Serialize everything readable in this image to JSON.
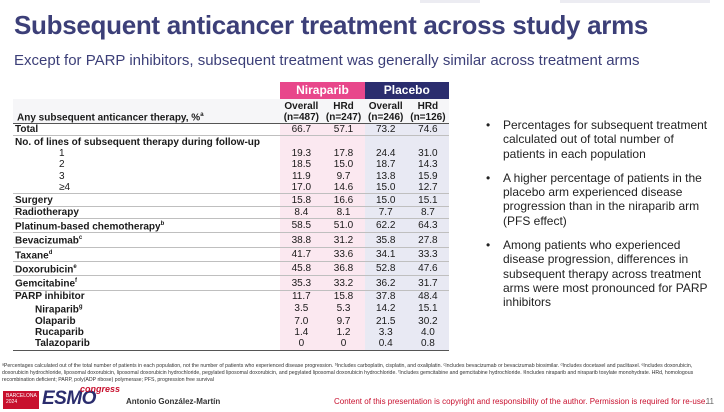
{
  "slide": {
    "title": "Subsequent anticancer treatment across study arms",
    "subtitle": "Except for PARP inhibitors, subsequent treatment was generally similar across treatment arms",
    "page_number": "11"
  },
  "table": {
    "group_headers": [
      "Niraparib",
      "Placebo"
    ],
    "row_header_label": "Any subsequent anticancer therapy, %",
    "row_header_sup": "a",
    "columns": [
      {
        "line1": "Overall",
        "line2": "(n=487)"
      },
      {
        "line1": "HRd",
        "line2": "(n=247)"
      },
      {
        "line1": "Overall",
        "line2": "(n=246)"
      },
      {
        "line1": "HRd",
        "line2": "(n=126)"
      }
    ],
    "rows": [
      {
        "label": "Total",
        "sup": "",
        "values": [
          "66.7",
          "57.1",
          "73.2",
          "74.6"
        ]
      },
      {
        "label": "No. of lines of subsequent therapy during follow-up",
        "sup": "",
        "values": [
          "",
          "",
          "",
          ""
        ]
      },
      {
        "label": "1",
        "sup": "",
        "values": [
          "19.3",
          "17.8",
          "24.4",
          "31.0"
        ]
      },
      {
        "label": "2",
        "sup": "",
        "values": [
          "18.5",
          "15.0",
          "18.7",
          "14.3"
        ]
      },
      {
        "label": "3",
        "sup": "",
        "values": [
          "11.9",
          "9.7",
          "13.8",
          "15.9"
        ]
      },
      {
        "label": "≥4",
        "sup": "",
        "values": [
          "17.0",
          "14.6",
          "15.0",
          "12.7"
        ]
      },
      {
        "label": "Surgery",
        "sup": "",
        "values": [
          "15.8",
          "16.6",
          "15.0",
          "15.1"
        ]
      },
      {
        "label": "Radiotherapy",
        "sup": "",
        "values": [
          "8.4",
          "8.1",
          "7.7",
          "8.7"
        ]
      },
      {
        "label": "Platinum-based chemotherapy",
        "sup": "b",
        "values": [
          "58.5",
          "51.0",
          "62.2",
          "64.3"
        ]
      },
      {
        "label": "Bevacizumab",
        "sup": "c",
        "values": [
          "38.8",
          "31.2",
          "35.8",
          "27.8"
        ]
      },
      {
        "label": "Taxane",
        "sup": "d",
        "values": [
          "41.7",
          "33.6",
          "34.1",
          "33.3"
        ]
      },
      {
        "label": "Doxorubicin",
        "sup": "e",
        "values": [
          "45.8",
          "36.8",
          "52.8",
          "47.6"
        ]
      },
      {
        "label": "Gemcitabine",
        "sup": "f",
        "values": [
          "35.3",
          "33.2",
          "36.2",
          "31.7"
        ]
      },
      {
        "label": "PARP inhibitor",
        "sup": "",
        "values": [
          "11.7",
          "15.8",
          "37.8",
          "48.4"
        ]
      },
      {
        "label": "Niraparib",
        "sup": "g",
        "values": [
          "3.5",
          "5.3",
          "14.2",
          "15.1"
        ]
      },
      {
        "label": "Olaparib",
        "sup": "",
        "values": [
          "7.0",
          "9.7",
          "21.5",
          "30.2"
        ]
      },
      {
        "label": "Rucaparib",
        "sup": "",
        "values": [
          "1.4",
          "1.2",
          "3.3",
          "4.0"
        ]
      },
      {
        "label": "Talazoparib",
        "sup": "",
        "values": [
          "0",
          "0",
          "0.4",
          "0.8"
        ]
      }
    ]
  },
  "bullets": [
    "Percentages for subsequent treatment calculated out of total number of patients in each population",
    "A higher percentage of patients in the placebo arm experienced disease progression than in the niraparib arm (PFS effect)",
    "Among patients who experienced disease progression, differences in subsequent therapy across treatment arms were most pronounced for PARP inhibitors"
  ],
  "bullet_glyph": "•",
  "footnote": "ᵃPercentages calculated out of the total number of patients in each population, not the number of patients who experienced disease progression. ᵇIncludes carboplatin, cisplatin, and oxaliplatin. ᶜIncludes bevacizumab or bevacizumab biosimilar. ᵈIncludes docetaxel and paclitaxel. ᵉIncludes doxorubicin, doxorubicin hydrochloride, liposomal doxorubicin, liposomal doxorubicin hydrochloride, pegylated liposomal doxorubicin, and pegylated liposomal doxorubicin hydrochloride. ᶠIncludes gemcitabine and gemcitabine hydrochloride. ᵍIncludes niraparib and niraparib tosylate monohydrate. HRd, homologous recombination deficient; PARP, poly(ADP ribose) polymerase; PFS, progression free survival",
  "footer": {
    "logo_city": "BARCELONA",
    "logo_year": "2024",
    "logo_word": "ESMO",
    "logo_congress": "congress",
    "presenter": "Antonio González-Martín",
    "copyright": "Content of this presentation is copyright and responsibility of the author. Permission is required for re-use."
  },
  "colors": {
    "title": "#3c3f78",
    "niraparib": "#e8478b",
    "placebo": "#2b2d6e",
    "copyright": "#c8102e"
  }
}
